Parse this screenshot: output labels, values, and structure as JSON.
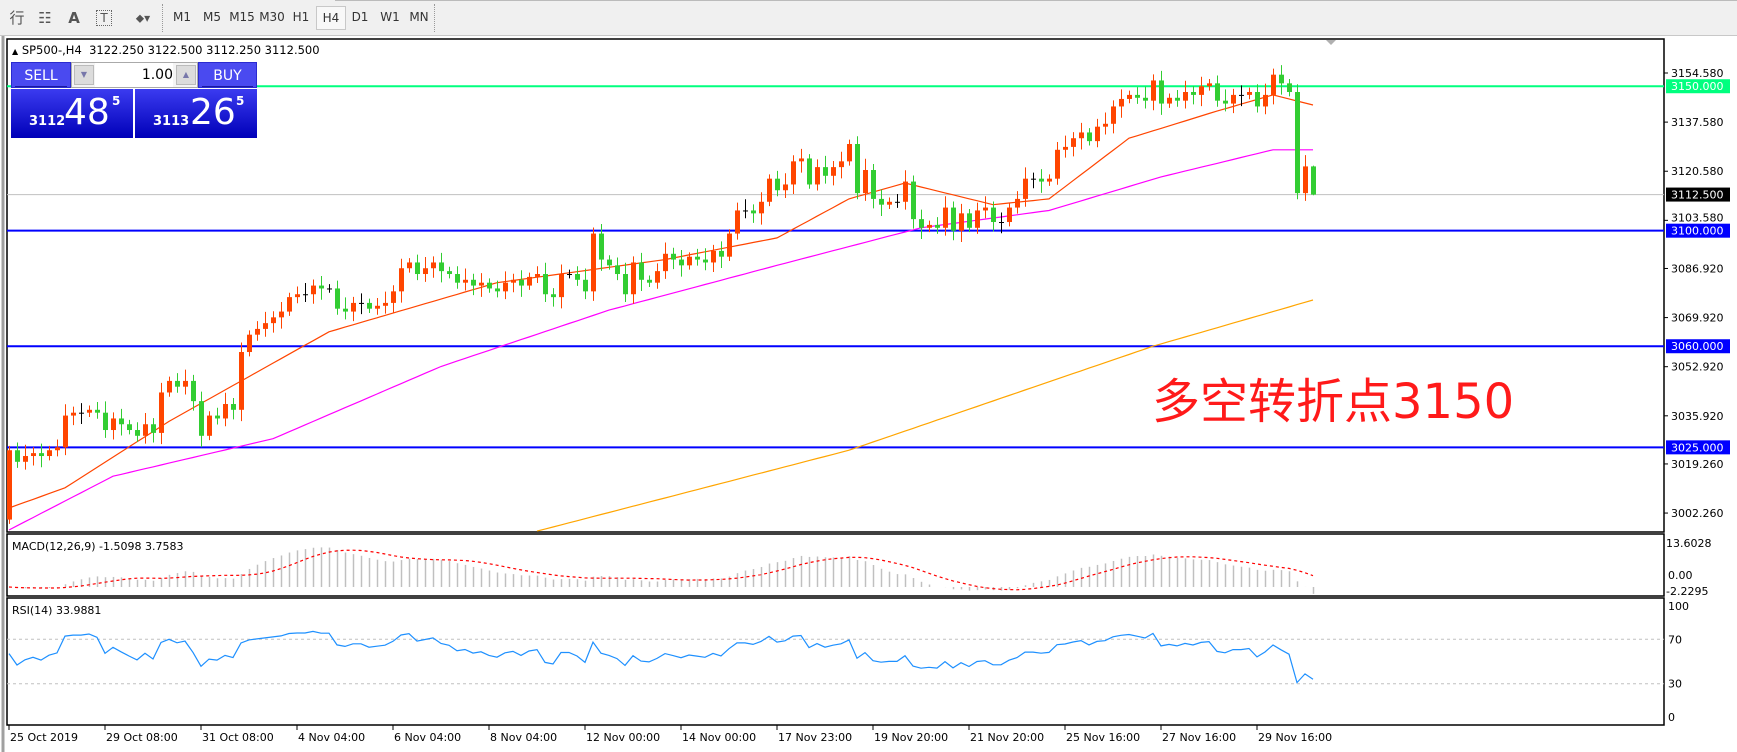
{
  "toolbar": {
    "icons": [
      "elliott-wave-icon",
      "fibonacci-fan-icon",
      "text-label-icon",
      "text-box-icon",
      "arrows-dropdown-icon"
    ],
    "icon_glyphs": {
      "elliott": "⾏",
      "fibo": "☷",
      "text": "A",
      "textbox": "T",
      "arrows": "⬥▾"
    },
    "periods": [
      "M1",
      "M5",
      "M15",
      "M30",
      "H1",
      "H4",
      "D1",
      "W1",
      "MN"
    ],
    "active_period": "H4"
  },
  "header": {
    "arrow": "▲",
    "symbol": "SP500-,H4",
    "ohlc": "3122.250 3122.500 3112.250 3112.500"
  },
  "trade_panel": {
    "sell_label": "SELL",
    "buy_label": "BUY",
    "lot_value": "1.00",
    "down_arrow": "▼",
    "up_arrow": "▲",
    "sell_price": {
      "prefix": "3112",
      "big": "48",
      "sup": "5"
    },
    "buy_price": {
      "prefix": "3113",
      "big": "26",
      "sup": "5"
    }
  },
  "annotation": "多空转折点3150",
  "colors": {
    "bull": "#ff4500",
    "bear": "#32cd32",
    "doji": "#000000",
    "ma_fast": "#ff4500",
    "ma_mid": "#ff00ff",
    "ma_slow": "#ffa500",
    "level_green": "#00ff7f",
    "level_blue": "#0000ff",
    "macd_hist": "#c0c0c0",
    "macd_signal": "#ff0000",
    "rsi": "#1e90ff"
  },
  "chart_data": {
    "type": "candlestick",
    "symbol": "SP500-",
    "timeframe": "H4",
    "first_open": 3000,
    "closes": [
      3024,
      3020,
      3022,
      3023,
      3022,
      3024,
      3025,
      3036,
      3037,
      3037,
      3038,
      3037,
      3031,
      3035,
      3033,
      3031,
      3029,
      3033,
      3030,
      3044,
      3048,
      3046,
      3048,
      3041,
      3029,
      3036,
      3035,
      3040,
      3038,
      3058,
      3064,
      3066,
      3068,
      3070,
      3072,
      3077,
      3078,
      3078,
      3081,
      3080,
      3080,
      3073,
      3072,
      3075,
      3075,
      3073,
      3074,
      3075,
      3079,
      3087,
      3089,
      3085,
      3087,
      3089,
      3086,
      3085,
      3082,
      3083,
      3081,
      3082,
      3080,
      3079,
      3082,
      3083,
      3081,
      3084,
      3085,
      3078,
      3077,
      3085,
      3085,
      3083,
      3079,
      3099,
      3090,
      3088,
      3085,
      3078,
      3089,
      3083,
      3082,
      3086,
      3092,
      3090,
      3088,
      3091,
      3090,
      3089,
      3093,
      3091,
      3099,
      3107,
      3107,
      3106,
      3110,
      3118,
      3114,
      3116,
      3124,
      3125,
      3116,
      3122,
      3119,
      3122,
      3124,
      3130,
      3113,
      3121,
      3111,
      3109,
      3110,
      3110,
      3117,
      3104,
      3101,
      3102,
      3101,
      3108,
      3100,
      3106,
      3101,
      3107,
      3108,
      3103,
      3103,
      3108,
      3111,
      3118,
      3118,
      3117,
      3118,
      3128,
      3129,
      3132,
      3134,
      3131,
      3136,
      3137,
      3143,
      3145.6,
      3147,
      3146,
      3145,
      3152,
      3144,
      3146,
      3145,
      3148,
      3147,
      3150,
      3151,
      3145,
      3144,
      3147,
      3147,
      3148,
      3143,
      3147,
      3154,
      3151,
      3148,
      3113,
      3122.25,
      3112.5
    ],
    "last_bar": {
      "open": 3122.25,
      "high": 3122.5,
      "low": 3112.25,
      "close": 3112.5
    },
    "ma_fast_points": [
      [
        0,
        3004
      ],
      [
        7,
        3011
      ],
      [
        20,
        3034
      ],
      [
        40,
        3065
      ],
      [
        61,
        3082
      ],
      [
        82,
        3090
      ],
      [
        96,
        3097.5
      ],
      [
        105,
        3111
      ],
      [
        112,
        3116.5
      ],
      [
        123,
        3109
      ],
      [
        130,
        3111
      ],
      [
        140,
        3132
      ],
      [
        151,
        3141.4
      ],
      [
        158,
        3147
      ],
      [
        163,
        3143.5
      ]
    ],
    "ma_mid_points": [
      [
        0,
        2996.4
      ],
      [
        13,
        3015
      ],
      [
        33,
        3028
      ],
      [
        54,
        3053
      ],
      [
        75,
        3072.5
      ],
      [
        96,
        3088
      ],
      [
        114,
        3101
      ],
      [
        130,
        3107
      ],
      [
        144,
        3118.6
      ],
      [
        158,
        3128
      ],
      [
        163,
        3128
      ]
    ],
    "ma_slow_points": [
      [
        66,
        2996
      ],
      [
        105,
        3024
      ],
      [
        143,
        3060
      ],
      [
        163,
        3076
      ]
    ],
    "price_axis": {
      "ticks": [
        "3154.580",
        "3137.580",
        "3120.580",
        "3103.580",
        "3086.920",
        "3069.920",
        "3052.920",
        "3035.920",
        "3019.260",
        "3002.260"
      ],
      "range": [
        2998.5,
        3165
      ]
    },
    "levels": [
      {
        "price": 3150,
        "label": "3150.000",
        "color": "#00ff7f"
      },
      {
        "price": 3100,
        "label": "3100.000",
        "color": "#0000ff"
      },
      {
        "price": 3060,
        "label": "3060.000",
        "color": "#0000ff"
      },
      {
        "price": 3025,
        "label": "3025.000",
        "color": "#0000ff"
      }
    ],
    "current_price": {
      "price": 3112.5,
      "label": "3112.500"
    },
    "x_labels": [
      "25 Oct 2019",
      "29 Oct 08:00",
      "31 Oct 08:00",
      "4 Nov 04:00",
      "6 Nov 04:00",
      "8 Nov 04:00",
      "12 Nov 00:00",
      "14 Nov 00:00",
      "17 Nov 23:00",
      "19 Nov 20:00",
      "21 Nov 20:00",
      "25 Nov 16:00",
      "27 Nov 16:00",
      "29 Nov 16:00"
    ],
    "macd": {
      "title": "MACD(12,26,9) -1.5098 3.7583",
      "params": [
        12,
        26,
        9
      ],
      "main": -1.5098,
      "signal": 3.7583,
      "axis_max": "13.6028",
      "axis_zero": "0.00",
      "axis_min": "-2.2295"
    },
    "rsi": {
      "title": "RSI(14) 33.9881",
      "period": 14,
      "value": 33.9881,
      "levels": [
        "100",
        "70",
        "30",
        "0"
      ]
    }
  }
}
